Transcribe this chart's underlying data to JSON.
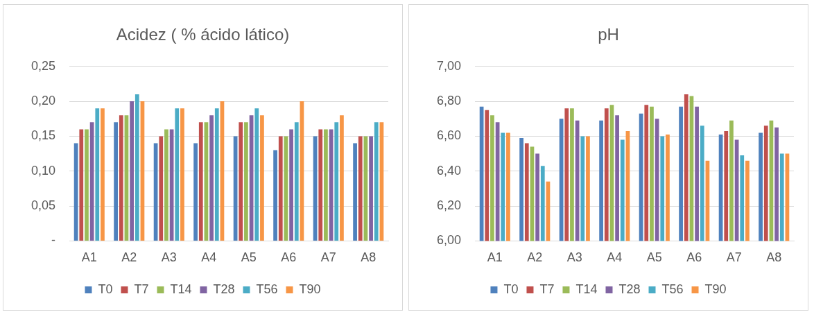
{
  "chart_data": [
    {
      "type": "bar",
      "title": "Acidez ( % ácido lático)",
      "categories": [
        "A1",
        "A2",
        "A3",
        "A4",
        "A5",
        "A6",
        "A7",
        "A8"
      ],
      "series": [
        {
          "name": "T0",
          "color": "#4f81bd",
          "values": [
            0.14,
            0.17,
            0.14,
            0.14,
            0.15,
            0.13,
            0.15,
            0.14
          ]
        },
        {
          "name": "T7",
          "color": "#c0504d",
          "values": [
            0.16,
            0.18,
            0.15,
            0.17,
            0.17,
            0.15,
            0.16,
            0.15
          ]
        },
        {
          "name": "T14",
          "color": "#9bbb59",
          "values": [
            0.16,
            0.18,
            0.16,
            0.17,
            0.17,
            0.15,
            0.16,
            0.15
          ]
        },
        {
          "name": "T28",
          "color": "#8064a2",
          "values": [
            0.17,
            0.2,
            0.16,
            0.18,
            0.18,
            0.16,
            0.16,
            0.15
          ]
        },
        {
          "name": "T56",
          "color": "#4bacc6",
          "values": [
            0.19,
            0.21,
            0.19,
            0.19,
            0.19,
            0.17,
            0.17,
            0.17
          ]
        },
        {
          "name": "T90",
          "color": "#f79646",
          "values": [
            0.19,
            0.2,
            0.19,
            0.2,
            0.18,
            0.2,
            0.18,
            0.17
          ]
        }
      ],
      "ylim": [
        0,
        0.25
      ],
      "yticks": [
        {
          "value": 0,
          "label": "-"
        },
        {
          "value": 0.05,
          "label": "0,05"
        },
        {
          "value": 0.1,
          "label": "0,10"
        },
        {
          "value": 0.15,
          "label": "0,15"
        },
        {
          "value": 0.2,
          "label": "0,20"
        },
        {
          "value": 0.25,
          "label": "0,25"
        }
      ],
      "grid": "y",
      "legend": "bottom"
    },
    {
      "type": "bar",
      "title": "pH",
      "categories": [
        "A1",
        "A2",
        "A3",
        "A4",
        "A5",
        "A6",
        "A7",
        "A8"
      ],
      "series": [
        {
          "name": "T0",
          "color": "#4f81bd",
          "values": [
            6.77,
            6.59,
            6.7,
            6.69,
            6.73,
            6.77,
            6.61,
            6.62
          ]
        },
        {
          "name": "T7",
          "color": "#c0504d",
          "values": [
            6.75,
            6.56,
            6.76,
            6.76,
            6.78,
            6.84,
            6.63,
            6.66
          ]
        },
        {
          "name": "T14",
          "color": "#9bbb59",
          "values": [
            6.72,
            6.54,
            6.76,
            6.78,
            6.77,
            6.83,
            6.69,
            6.69
          ]
        },
        {
          "name": "T28",
          "color": "#8064a2",
          "values": [
            6.68,
            6.5,
            6.69,
            6.72,
            6.7,
            6.77,
            6.58,
            6.65
          ]
        },
        {
          "name": "T56",
          "color": "#4bacc6",
          "values": [
            6.62,
            6.43,
            6.6,
            6.58,
            6.6,
            6.66,
            6.49,
            6.5
          ]
        },
        {
          "name": "T90",
          "color": "#f79646",
          "values": [
            6.62,
            6.34,
            6.6,
            6.63,
            6.61,
            6.46,
            6.46,
            6.5
          ]
        }
      ],
      "ylim": [
        6,
        7
      ],
      "yticks": [
        {
          "value": 6,
          "label": "6,00"
        },
        {
          "value": 6.2,
          "label": "6,20"
        },
        {
          "value": 6.4,
          "label": "6,40"
        },
        {
          "value": 6.6,
          "label": "6,60"
        },
        {
          "value": 6.8,
          "label": "6,80"
        },
        {
          "value": 7,
          "label": "7,00"
        }
      ],
      "grid": "y",
      "legend": "bottom"
    }
  ]
}
